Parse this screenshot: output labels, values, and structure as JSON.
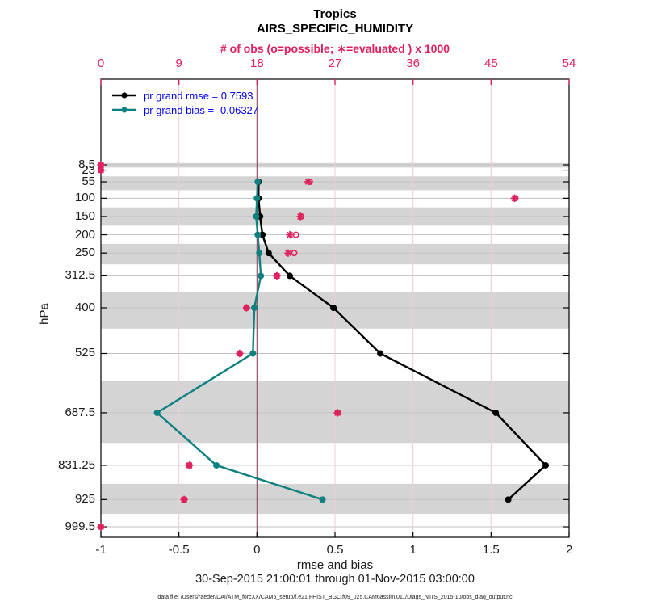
{
  "header": {
    "title": "Tropics",
    "subtitle": "AIRS_SPECIFIC_HUMIDITY"
  },
  "footer": {
    "xlabel": "rmse and bias",
    "timespan": "30-Sep-2015 21:00:01 through 01-Nov-2015 03:00:00",
    "datafile": "data file: /Users/raeder/DAI/ATM_forcXX/CAM6_setup/f.e21.FHIST_BGC.f09_025.CAM6assim.011/Diags_NTrS_2015-10/obs_diag_output.nc"
  },
  "legend": {
    "text_color": "#0000ff",
    "items": [
      {
        "label": "pr grand rmse = 0.7593",
        "color": "#000000"
      },
      {
        "label": "pr grand bias = -0.06327",
        "color": "#0d8080"
      }
    ]
  },
  "chart_data": {
    "type": "line",
    "title": "Tropics",
    "subtitle": "AIRS_SPECIFIC_HUMIDITY",
    "orientation": "vertical-profile",
    "top_axis": {
      "label": "# of obs (o=possible; ∗=evaluated ) x 1000",
      "tick_values": [
        0,
        9,
        18,
        27,
        36,
        45,
        54
      ],
      "tick_labels": [
        "0",
        "9",
        "18",
        "27",
        "36",
        "45",
        "54"
      ],
      "range": [
        0,
        54
      ],
      "color": "#e0205c"
    },
    "bottom_axis": {
      "label": "rmse and bias",
      "tick_values": [
        -1,
        -0.5,
        0,
        0.5,
        1,
        1.5,
        2
      ],
      "tick_labels": [
        "-1",
        "-0.5",
        "0",
        "0.5",
        "1",
        "1.5",
        "2"
      ],
      "range": [
        -1,
        2
      ]
    },
    "left_axis": {
      "label": "hPa",
      "tick_values": [
        8.5,
        23,
        55,
        100,
        150,
        200,
        250,
        312.5,
        400,
        525,
        687.5,
        831.25,
        925,
        999.5
      ],
      "tick_labels": [
        "8.5",
        "23",
        "55",
        "100",
        "150",
        "200",
        "250",
        "312.5",
        "400",
        "525",
        "687.5",
        "831.25",
        "925",
        "999.5"
      ]
    },
    "series": [
      {
        "name": "pr grand rmse",
        "legend_label": "pr grand rmse = 0.7593",
        "color": "#000000",
        "levels_hpa": [
          55,
          100,
          150,
          200,
          250,
          312.5,
          400,
          525,
          687.5,
          831.25,
          925
        ],
        "values": [
          0.01,
          0.01,
          0.02,
          0.035,
          0.075,
          0.21,
          0.49,
          0.79,
          1.53,
          1.85,
          1.61
        ]
      },
      {
        "name": "pr grand bias",
        "legend_label": "pr grand bias = -0.06327",
        "color": "#0d8080",
        "levels_hpa": [
          55,
          100,
          150,
          200,
          250,
          312.5,
          400,
          525,
          687.5,
          831.25,
          925
        ],
        "values": [
          0.005,
          0.0,
          -0.005,
          0.005,
          0.015,
          0.025,
          -0.017,
          -0.026,
          -0.64,
          -0.26,
          0.42
        ]
      }
    ],
    "obs_counts_x1000": {
      "color": "#e0205c",
      "levels_hpa": [
        8.5,
        23,
        55,
        100,
        150,
        200,
        250,
        312.5,
        400,
        525,
        687.5,
        831.25,
        925,
        999.5
      ],
      "possible": [
        0,
        0,
        24.1,
        47.8,
        23.1,
        22.5,
        22.3,
        20.3,
        16.8,
        16.0,
        27.3,
        10.2,
        9.6,
        0
      ],
      "evaluated": [
        0,
        0,
        23.9,
        47.7,
        23.0,
        21.8,
        21.6,
        20.3,
        16.8,
        16.0,
        27.3,
        10.2,
        9.6,
        0
      ]
    },
    "layer_bands": {
      "color": "#d4d4d4",
      "pressure_ranges_hpa": [
        [
          3.5,
          16
        ],
        [
          40,
          78
        ],
        [
          125,
          175
        ],
        [
          225,
          281
        ],
        [
          356,
          457
        ],
        [
          600,
          770
        ],
        [
          882,
          964
        ]
      ]
    },
    "grid": {
      "h_gridline_color": "#bfbfbf",
      "v_gridline_color": "#eeccd7",
      "zero_line_color": "#96536a"
    }
  }
}
